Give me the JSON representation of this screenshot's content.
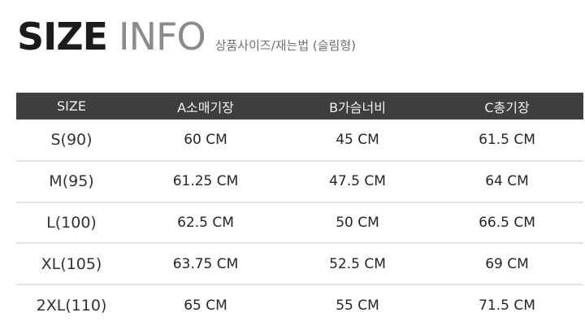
{
  "title": {
    "size_word": "SIZE",
    "info_word": "INFO",
    "subtitle": "상품사이즈/재는법 (슬림형)"
  },
  "table": {
    "headers": [
      "SIZE",
      "A소매기장",
      "B가슴너비",
      "C총기장"
    ],
    "rows": [
      [
        "S(90)",
        "60 CM",
        "45 CM",
        "61.5 CM"
      ],
      [
        "M(95)",
        "61.25 CM",
        "47.5 CM",
        "64 CM"
      ],
      [
        "L(100)",
        "62.5 CM",
        "50 CM",
        "66.5 CM"
      ],
      [
        "XL(105)",
        "63.75 CM",
        "52.5 CM",
        "69 CM"
      ],
      [
        "2XL(110)",
        "65 CM",
        "55 CM",
        "71.5 CM"
      ]
    ]
  },
  "colors": {
    "header_bg": "#3e3e3e",
    "header_text": "#f2f2f2",
    "title_dark": "#1c1c1c",
    "title_gray": "#8b8b8b",
    "row_divider": "#e3e3e3"
  }
}
